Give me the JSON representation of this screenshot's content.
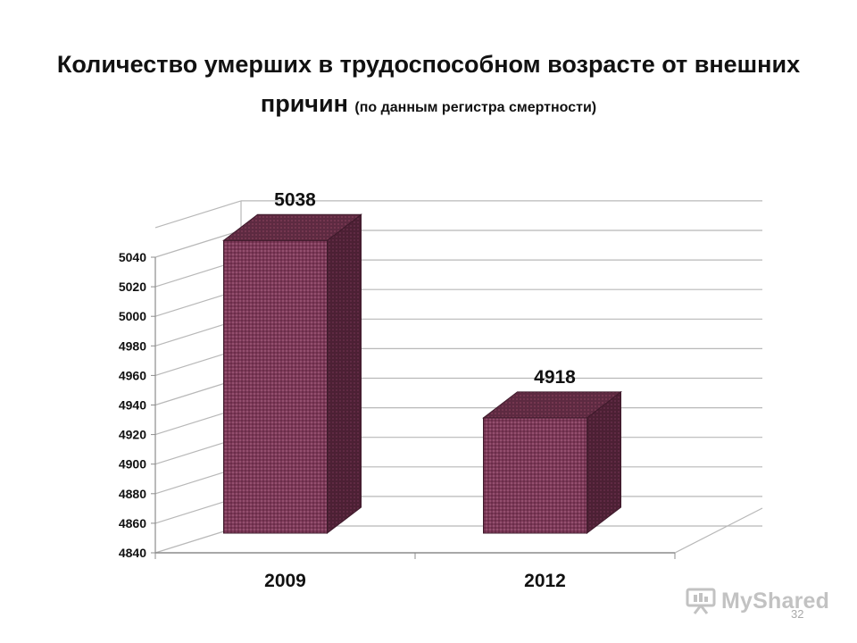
{
  "title": {
    "main": "Количество умерших в трудоспособном возрасте от внешних причин",
    "note": "(по данным регистра смертности)"
  },
  "chart_data": {
    "type": "bar",
    "categories": [
      "2009",
      "2012"
    ],
    "values": [
      5038,
      4918
    ],
    "data_labels": [
      "5038",
      "4918"
    ],
    "title": "Количество умерших в трудоспособном возрасте от внешних причин",
    "xlabel": "",
    "ylabel": "",
    "ylim": [
      4840,
      5040
    ],
    "yticks": [
      4840,
      4860,
      4880,
      4900,
      4920,
      4940,
      4960,
      4980,
      5000,
      5020,
      5040
    ],
    "grid": true,
    "legend": "none",
    "style": "3d-bar",
    "colors": {
      "bar_front": "#7c3958",
      "bar_side": "#4c2034",
      "bar_top": "#5d2a41",
      "grid": "#b8b8b8"
    }
  },
  "watermark": {
    "text": "MyShared",
    "icon": "presentation-icon"
  },
  "page_number": "32"
}
